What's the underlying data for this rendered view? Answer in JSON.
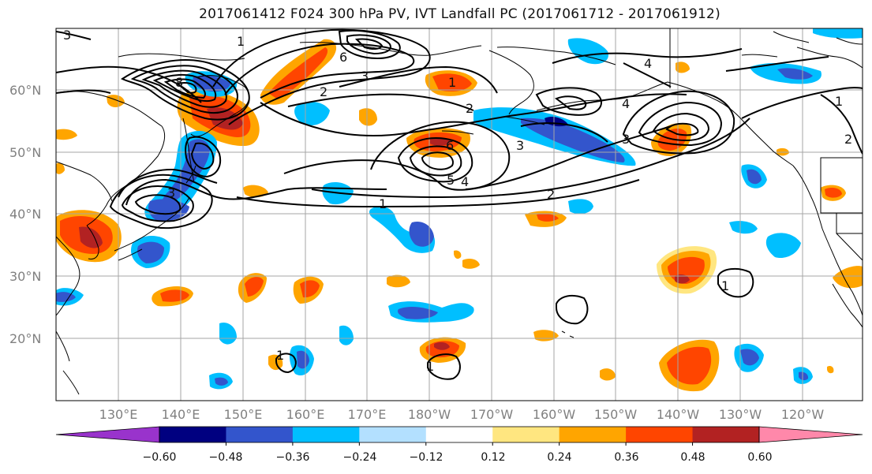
{
  "title": "2017061412 F024 300 hPa PV, IVT Landfall PC (2017061712 - 2017061912)",
  "lat_labels": [
    "60°N",
    "50°N",
    "40°N",
    "30°N",
    "20°N"
  ],
  "lon_labels": [
    "130°E",
    "140°E",
    "150°E",
    "160°E",
    "170°E",
    "180°W",
    "170°W",
    "160°W",
    "150°W",
    "140°W",
    "130°W",
    "120°W"
  ],
  "colorbar": {
    "colors": [
      "#9933cc",
      "#000080",
      "#3355cc",
      "#00bfff",
      "#b3e0ff",
      "#ffffff",
      "#ffe680",
      "#ffa500",
      "#ff4500",
      "#b22222",
      "#ff88aa"
    ],
    "tick_labels": [
      "−0.60",
      "−0.48",
      "−0.36",
      "−0.24",
      "−0.12",
      "0.12",
      "0.24",
      "0.36",
      "0.48",
      "0.60"
    ]
  },
  "contour_labels": [
    "3",
    "1",
    "6",
    "8",
    "2",
    "3",
    "1",
    "2",
    "3",
    "4",
    "4",
    "6",
    "3",
    "5",
    "3",
    "4",
    "1",
    "2",
    "1",
    "2",
    "1",
    "1",
    "1"
  ]
}
